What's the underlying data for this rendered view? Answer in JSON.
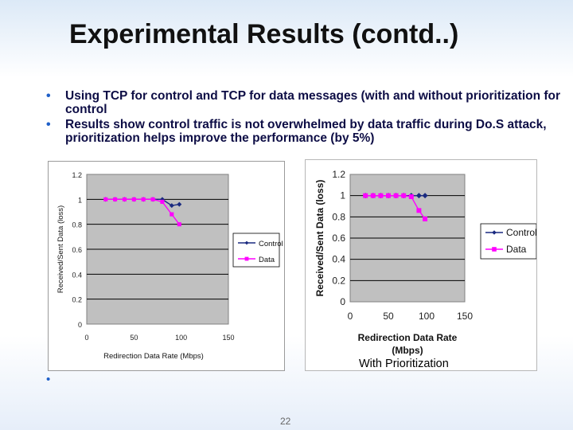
{
  "slide": {
    "title": "Experimental Results (contd..)",
    "bullets": [
      "Using TCP for control and TCP for data messages (with and without prioritization for control",
      "Results show control traffic is not overwhelmed by data traffic during Do.S attack, prioritization helps improve the performance (by 5%)"
    ],
    "bullet_symbol": "•",
    "caption": "With Prioritization",
    "page_number": "22"
  },
  "colors": {
    "control": "#1a2a80",
    "data": "#ff00ff",
    "plot_bg": "#c0c0c0"
  },
  "chart_data": [
    {
      "type": "line",
      "title": "",
      "xlabel": "Redirection Data Rate (Mbps)",
      "ylabel": "Received/Sent Data (loss)",
      "xlim": [
        0,
        150
      ],
      "ylim": [
        0,
        1.2
      ],
      "x_ticks": [
        "0",
        "50",
        "100",
        "150"
      ],
      "y_ticks": [
        "0",
        "0.2",
        "0.4",
        "0.6",
        "0.8",
        "1",
        "1.2"
      ],
      "legend_position": "right",
      "grid": true,
      "series": [
        {
          "name": "Control",
          "x": [
            20,
            30,
            40,
            50,
            60,
            70,
            80,
            90,
            98
          ],
          "y": [
            1,
            1,
            1,
            1,
            1,
            1,
            1,
            0.95,
            0.96
          ]
        },
        {
          "name": "Data",
          "x": [
            20,
            30,
            40,
            50,
            60,
            70,
            80,
            90,
            98
          ],
          "y": [
            1,
            1,
            1,
            1,
            1,
            1,
            0.98,
            0.88,
            0.8
          ]
        }
      ]
    },
    {
      "type": "line",
      "title": "",
      "xlabel": "Redirection Data Rate (Mbps)",
      "ylabel": "Received/Sent Data (loss)",
      "xlim": [
        0,
        150
      ],
      "ylim": [
        0,
        1.2
      ],
      "x_ticks": [
        "0",
        "50",
        "100",
        "150"
      ],
      "y_ticks": [
        "0",
        "0.2",
        "0.4",
        "0.6",
        "0.8",
        "1",
        "1.2"
      ],
      "legend_position": "right",
      "grid": true,
      "series": [
        {
          "name": "Control",
          "x": [
            20,
            30,
            40,
            50,
            60,
            70,
            80,
            90,
            98
          ],
          "y": [
            1,
            1,
            1,
            1,
            1,
            1,
            1,
            1,
            1
          ]
        },
        {
          "name": "Data",
          "x": [
            20,
            30,
            40,
            50,
            60,
            70,
            80,
            90,
            98
          ],
          "y": [
            1,
            1,
            1,
            1,
            1,
            1,
            0.99,
            0.86,
            0.78
          ]
        }
      ]
    }
  ]
}
